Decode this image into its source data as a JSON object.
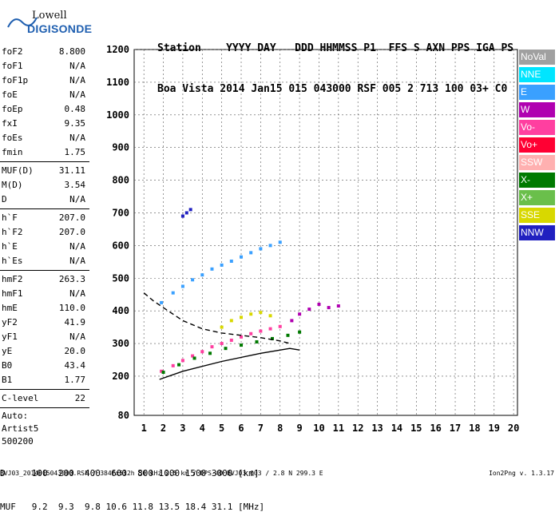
{
  "logo": {
    "top": "Lowell",
    "bottom": "DIGISONDE"
  },
  "header": {
    "line1": "Station    YYYY DAY   DDD HHMMSS P1  FFS S AXN PPS IGA PS",
    "line2": "Boa Vista 2014 Jan15 015 043000 RSF 005 2 713 100 03+ C0"
  },
  "params_group1": [
    {
      "k": "foF2",
      "v": "8.800"
    },
    {
      "k": "foF1",
      "v": "N/A"
    },
    {
      "k": "foF1p",
      "v": "N/A"
    },
    {
      "k": "foE",
      "v": "N/A"
    },
    {
      "k": "foEp",
      "v": "0.48"
    },
    {
      "k": "fxI",
      "v": "9.35"
    },
    {
      "k": "foEs",
      "v": "N/A"
    },
    {
      "k": "fmin",
      "v": "1.75"
    }
  ],
  "params_group2": [
    {
      "k": "MUF(D)",
      "v": "31.11"
    },
    {
      "k": "M(D)",
      "v": "3.54"
    },
    {
      "k": "D",
      "v": "N/A"
    }
  ],
  "params_group3": [
    {
      "k": "h`F",
      "v": "207.0"
    },
    {
      "k": "h`F2",
      "v": "207.0"
    },
    {
      "k": "h`E",
      "v": "N/A"
    },
    {
      "k": "h`Es",
      "v": "N/A"
    }
  ],
  "params_group4": [
    {
      "k": "hmF2",
      "v": "263.3"
    },
    {
      "k": "hmF1",
      "v": "N/A"
    },
    {
      "k": "hmE",
      "v": "110.0"
    },
    {
      "k": "yF2",
      "v": "41.9"
    },
    {
      "k": "yF1",
      "v": "N/A"
    },
    {
      "k": "yE",
      "v": "20.0"
    },
    {
      "k": "B0",
      "v": "43.4"
    },
    {
      "k": "B1",
      "v": "1.77"
    }
  ],
  "params_group5": [
    {
      "k": "C-level",
      "v": "22"
    }
  ],
  "auto": {
    "line1": "Auto:",
    "line2": "Artist5",
    "line3": "500200"
  },
  "legend": [
    {
      "label": "NoVal",
      "color": "#a0a0a0"
    },
    {
      "label": "NNE",
      "color": "#00e5ff"
    },
    {
      "label": "E",
      "color": "#3aa0ff"
    },
    {
      "label": "W",
      "color": "#b000b0"
    },
    {
      "label": "Vo-",
      "color": "#ff3fa0"
    },
    {
      "label": "Vo+",
      "color": "#ff0033"
    },
    {
      "label": "SSW",
      "color": "#ffb0b0"
    },
    {
      "label": "X-",
      "color": "#007a00"
    },
    {
      "label": "X+",
      "color": "#6abf4b"
    },
    {
      "label": "SSE",
      "color": "#d8d800"
    },
    {
      "label": "NNW",
      "color": "#2020c0"
    }
  ],
  "footer": {
    "line1": "D     100  200  400  600  800 1000 1500 3000 [km]",
    "line2": "MUF   9.2  9.3  9.8 10.6 11.8 13.5 18.4 31.1 [MHz]",
    "line3": "BVJ03_2014015043000.RSF / 384fx512h 50 kHz 2.5 km / DPS-4D BVJ03 003 / 2.8 N 299.3 E",
    "version": "Ion2Png v. 1.3.17"
  },
  "chart_data": {
    "type": "scatter",
    "xlabel": "",
    "ylabel": "",
    "xlim": [
      0.5,
      20.2
    ],
    "ylim": [
      80,
      1200
    ],
    "x_ticks": [
      1,
      2,
      3,
      4,
      5,
      6,
      7,
      8,
      9,
      10,
      11,
      12,
      13,
      14,
      15,
      16,
      17,
      18,
      19,
      20
    ],
    "y_ticks": [
      80,
      200,
      300,
      400,
      500,
      600,
      700,
      800,
      900,
      1000,
      1100,
      1200
    ],
    "grid": true,
    "legend_placement": "right",
    "series": [
      {
        "color": "#ff3fa0",
        "points": [
          [
            1.9,
            215
          ],
          [
            2.5,
            232
          ],
          [
            3.0,
            248
          ],
          [
            3.5,
            262
          ],
          [
            4.0,
            275
          ],
          [
            4.5,
            290
          ],
          [
            5.0,
            300
          ],
          [
            5.5,
            310
          ],
          [
            6.0,
            320
          ],
          [
            6.5,
            330
          ],
          [
            7.0,
            338
          ],
          [
            7.5,
            345
          ],
          [
            8.0,
            352
          ]
        ]
      },
      {
        "color": "#3aa0ff",
        "points": [
          [
            1.9,
            425
          ],
          [
            2.5,
            455
          ],
          [
            3.0,
            475
          ],
          [
            3.5,
            495
          ],
          [
            4.0,
            510
          ],
          [
            4.5,
            528
          ],
          [
            5.0,
            540
          ],
          [
            5.5,
            552
          ],
          [
            6.0,
            565
          ],
          [
            6.5,
            578
          ],
          [
            7.0,
            590
          ],
          [
            7.5,
            600
          ],
          [
            8.0,
            610
          ]
        ]
      },
      {
        "color": "#007a00",
        "points": [
          [
            2.0,
            212
          ],
          [
            2.8,
            235
          ],
          [
            3.6,
            255
          ],
          [
            4.4,
            270
          ],
          [
            5.2,
            285
          ],
          [
            6.0,
            295
          ],
          [
            6.8,
            305
          ],
          [
            7.6,
            315
          ],
          [
            8.4,
            325
          ],
          [
            9.0,
            335
          ]
        ]
      },
      {
        "color": "#d8d800",
        "points": [
          [
            5.0,
            350
          ],
          [
            5.5,
            370
          ],
          [
            6.0,
            380
          ],
          [
            6.5,
            390
          ],
          [
            7.0,
            395
          ],
          [
            7.5,
            385
          ]
        ]
      },
      {
        "color": "#b000b0",
        "points": [
          [
            8.6,
            370
          ],
          [
            9.0,
            390
          ],
          [
            9.5,
            405
          ],
          [
            10.0,
            420
          ],
          [
            10.5,
            410
          ],
          [
            11.0,
            415
          ]
        ]
      },
      {
        "color": "#2020c0",
        "points": [
          [
            3.0,
            690
          ],
          [
            3.2,
            700
          ],
          [
            3.4,
            710
          ]
        ]
      }
    ],
    "curves": [
      {
        "color": "#000",
        "style": "solid",
        "points": [
          [
            1.8,
            190
          ],
          [
            3,
            215
          ],
          [
            5,
            245
          ],
          [
            7,
            270
          ],
          [
            8.5,
            285
          ],
          [
            9.0,
            280
          ]
        ]
      },
      {
        "color": "#000",
        "style": "dashed",
        "points": [
          [
            1.0,
            455
          ],
          [
            1.5,
            430
          ],
          [
            2,
            410
          ],
          [
            3,
            370
          ],
          [
            4,
            345
          ],
          [
            5,
            332
          ],
          [
            6,
            325
          ],
          [
            7,
            318
          ],
          [
            8,
            308
          ],
          [
            8.5,
            300
          ]
        ]
      }
    ]
  }
}
